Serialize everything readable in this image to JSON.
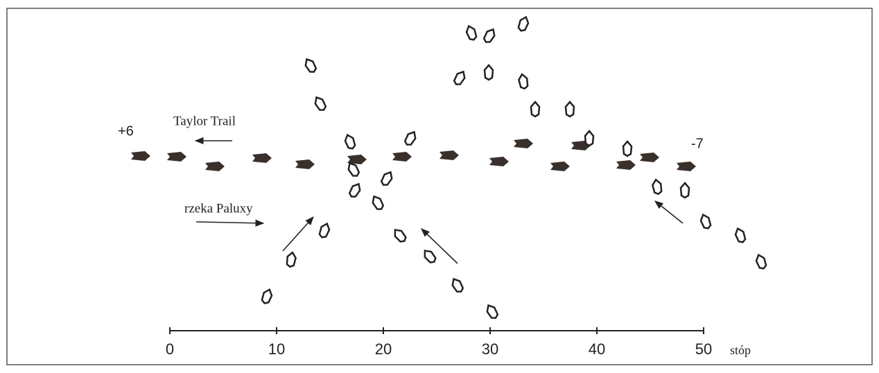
{
  "labels": {
    "start": "+6",
    "end": "-7",
    "trail": "Taylor Trail",
    "river": "rzeka Paluxy"
  },
  "scale": {
    "ticks": [
      0,
      10,
      20,
      30,
      40,
      50
    ],
    "unit": "stóp"
  }
}
